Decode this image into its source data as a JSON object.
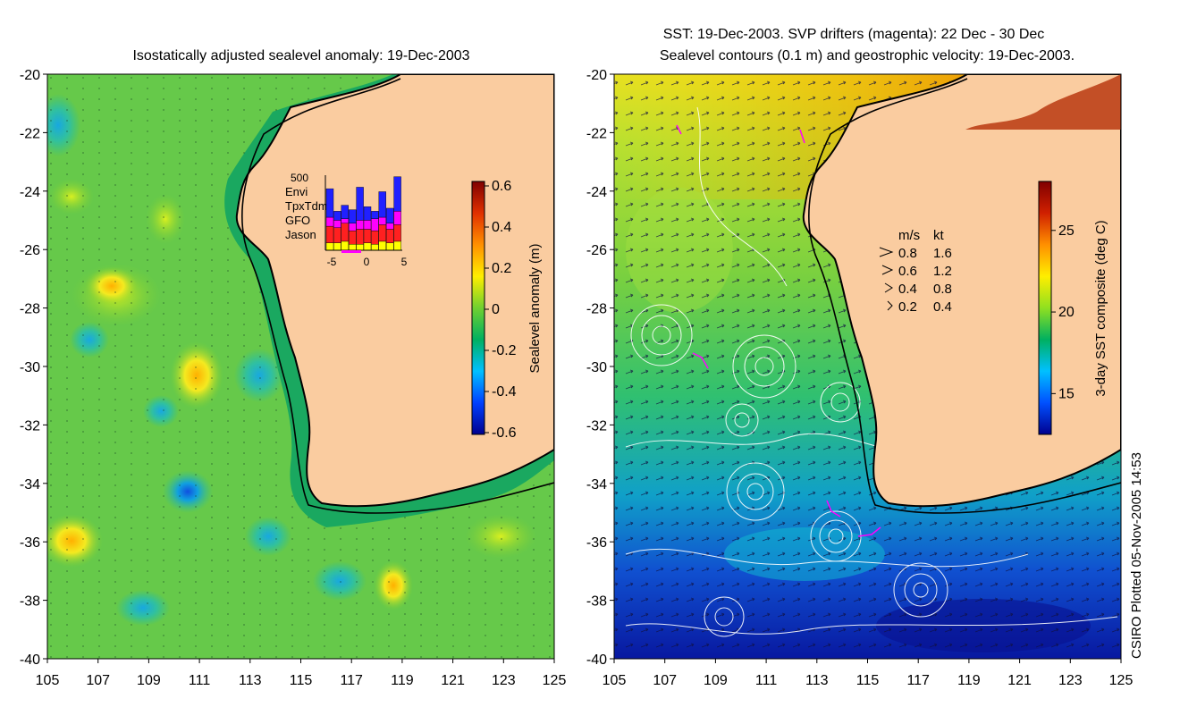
{
  "left_panel": {
    "title": "Isostatically adjusted sealevel anomaly: 19-Dec-2003",
    "colorbar": {
      "label": "Sealevel anomaly (m)",
      "ticks": [
        "0.6",
        "0.4",
        "0.2",
        "0",
        "-0.2",
        "-0.4",
        "-0.6"
      ],
      "range": [
        -0.6,
        0.6
      ],
      "stops": [
        "#00008f",
        "#0040ff",
        "#00c0ff",
        "#00b060",
        "#70d030",
        "#ffee00",
        "#ff9000",
        "#e03000",
        "#800000"
      ]
    },
    "inset": {
      "top_label": "500",
      "legend": [
        {
          "name": "Envi",
          "color": "#2020ff"
        },
        {
          "name": "TpxTdm",
          "color": "#ff00ff"
        },
        {
          "name": "GFO",
          "color": "#ff2020"
        },
        {
          "name": "Jason",
          "color": "#ffff00"
        }
      ],
      "xticks": [
        "-5",
        "0",
        "5"
      ],
      "bars": [
        {
          "Jason": 50,
          "GFO": 110,
          "TpxTdm": 60,
          "Envi": 190
        },
        {
          "Jason": 50,
          "GFO": 100,
          "TpxTdm": 50,
          "Envi": 60
        },
        {
          "Jason": 60,
          "GFO": 120,
          "TpxTdm": 30,
          "Envi": 90
        },
        {
          "Jason": 40,
          "GFO": 90,
          "TpxTdm": 50,
          "Envi": 90
        },
        {
          "Jason": 40,
          "GFO": 100,
          "TpxTdm": 60,
          "Envi": 220
        },
        {
          "Jason": 50,
          "GFO": 90,
          "TpxTdm": 60,
          "Envi": 90
        },
        {
          "Jason": 40,
          "GFO": 90,
          "TpxTdm": 80,
          "Envi": 50
        },
        {
          "Jason": 60,
          "GFO": 110,
          "TpxTdm": 50,
          "Envi": 170
        },
        {
          "Jason": 50,
          "GFO": 90,
          "TpxTdm": 40,
          "Envi": 100
        },
        {
          "Jason": 60,
          "GFO": 110,
          "TpxTdm": 90,
          "Envi": 230
        }
      ]
    }
  },
  "right_panel": {
    "title_line1": "SST: 19-Dec-2003. SVP drifters (magenta): 22 Dec - 30 Dec",
    "title_line2": "Sealevel contours (0.1 m) and geostrophic velocity: 19-Dec-2003.",
    "colorbar": {
      "label": "3-day SST composite (deg C)",
      "ticks": [
        "25",
        "20",
        "15"
      ],
      "range": [
        12.5,
        28
      ],
      "tick_values": [
        25,
        20,
        15
      ],
      "stops": [
        "#00008f",
        "#0050ff",
        "#00c0ff",
        "#00b060",
        "#90e020",
        "#ffee00",
        "#ff9000",
        "#d02000",
        "#800000"
      ]
    },
    "speed_legend": {
      "header_ms": "m/s",
      "header_kt": "kt",
      "rows": [
        {
          "ms": "0.8",
          "kt": "1.6"
        },
        {
          "ms": "0.6",
          "kt": "1.2"
        },
        {
          "ms": "0.4",
          "kt": "0.8"
        },
        {
          "ms": "0.2",
          "kt": "0.4"
        }
      ]
    }
  },
  "axes": {
    "lon_ticks": [
      "105",
      "107",
      "109",
      "111",
      "113",
      "115",
      "117",
      "119",
      "121",
      "123",
      "125"
    ],
    "lat_ticks": [
      "-20",
      "-22",
      "-24",
      "-26",
      "-28",
      "-30",
      "-32",
      "-34",
      "-36",
      "-38",
      "-40"
    ]
  },
  "credit": "CSIRO Plotted 05-Nov-2005 14:53",
  "colors": {
    "land": "#facca0",
    "coast": "#000000",
    "shelf": "#1aa860"
  }
}
